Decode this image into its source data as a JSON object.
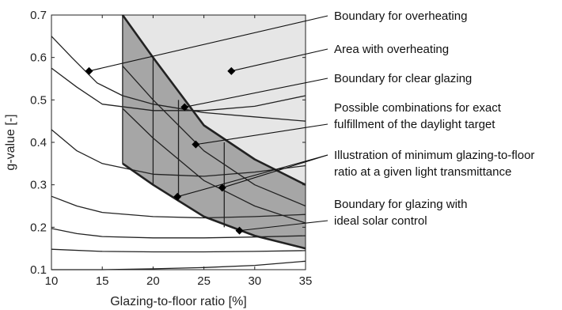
{
  "chart_data": {
    "type": "line",
    "title": "",
    "xlabel": "Glazing-to-floor ratio [%]",
    "ylabel": "g-value [-]",
    "xlim": [
      10,
      35
    ],
    "ylim": [
      0.1,
      0.7
    ],
    "xticks": [
      10,
      15,
      20,
      25,
      30,
      35
    ],
    "yticks": [
      0.1,
      0.2,
      0.3,
      0.4,
      0.5,
      0.6,
      0.7
    ],
    "xtick_labels": [
      "10",
      "15",
      "20",
      "25",
      "30",
      "35"
    ],
    "ytick_labels": [
      "0.1",
      "0.2",
      "0.3",
      "0.4",
      "0.5",
      "0.6",
      "0.7"
    ],
    "grid": false,
    "colors": {
      "overheating_area": "#e6e6e6",
      "possible_combinations_area": "#a6a6a6",
      "lines": "#222222",
      "markers": "#000000"
    },
    "series": [
      {
        "x": [
          10,
          12,
          14.5,
          17,
          20,
          25,
          30,
          35
        ],
        "y": [
          0.65,
          0.6,
          0.54,
          0.51,
          0.49,
          0.47,
          0.46,
          0.45
        ]
      },
      {
        "x": [
          10,
          12.5,
          15,
          20,
          25,
          30,
          35
        ],
        "y": [
          0.575,
          0.53,
          0.49,
          0.475,
          0.475,
          0.485,
          0.51
        ]
      },
      {
        "x": [
          10,
          12.5,
          15,
          20,
          25,
          30,
          35
        ],
        "y": [
          0.43,
          0.38,
          0.35,
          0.325,
          0.32,
          0.33,
          0.345
        ]
      },
      {
        "x": [
          10,
          12.5,
          15,
          20,
          25,
          30,
          35
        ],
        "y": [
          0.273,
          0.25,
          0.235,
          0.225,
          0.222,
          0.225,
          0.23
        ]
      },
      {
        "x": [
          10,
          12.5,
          15,
          20,
          25,
          30,
          35
        ],
        "y": [
          0.197,
          0.185,
          0.178,
          0.175,
          0.175,
          0.177,
          0.18
        ]
      },
      {
        "x": [
          10,
          15,
          20,
          25,
          30,
          35
        ],
        "y": [
          0.148,
          0.143,
          0.142,
          0.142,
          0.143,
          0.145
        ]
      },
      {
        "x": [
          10,
          15,
          20,
          25,
          30,
          35
        ],
        "y": [
          0.1,
          0.1,
          0.102,
          0.105,
          0.11,
          0.12
        ]
      },
      {
        "x": [
          17,
          20,
          25,
          30,
          35
        ],
        "y": [
          0.7,
          0.6,
          0.44,
          0.36,
          0.3
        ]
      },
      {
        "x": [
          17,
          20,
          25,
          30,
          35
        ],
        "y": [
          0.35,
          0.3,
          0.225,
          0.18,
          0.15
        ]
      },
      {
        "x": [
          17,
          20,
          25,
          30,
          35
        ],
        "y": [
          0.58,
          0.5,
          0.38,
          0.3,
          0.25
        ]
      },
      {
        "x": [
          17,
          20,
          25,
          30,
          35
        ],
        "y": [
          0.48,
          0.41,
          0.31,
          0.25,
          0.21
        ]
      }
    ],
    "regions": [
      {
        "x": [
          10,
          35,
          35,
          30,
          25,
          20,
          17,
          17,
          10
        ],
        "y": [
          0.7,
          0.7,
          0.3,
          0.36,
          0.44,
          0.6,
          0.7,
          0.7,
          0.7
        ]
      },
      {
        "x": [
          17,
          20,
          25,
          30,
          35,
          35,
          30,
          25,
          20,
          17
        ],
        "y": [
          0.7,
          0.6,
          0.44,
          0.36,
          0.3,
          0.15,
          0.18,
          0.225,
          0.3,
          0.35
        ]
      }
    ],
    "region_fill": [
      "overheating_area",
      "possible_combinations_area"
    ],
    "vertical_lines": [
      {
        "x": 17,
        "y": [
          0.35,
          0.7
        ]
      },
      {
        "x": 20,
        "y": [
          0.3,
          0.6
        ]
      },
      {
        "x": 22.5,
        "y": [
          0.26,
          0.5
        ]
      },
      {
        "x": 27,
        "y": [
          0.2,
          0.4
        ]
      }
    ],
    "bold_series": [
      7,
      8
    ],
    "annotations": [
      {
        "text": "Boundary for overheating",
        "marker": [
          13.7,
          0.568
        ],
        "lines": [
          "Boundary for overheating"
        ]
      },
      {
        "text": "Area with overheating",
        "marker": [
          27.7,
          0.568
        ],
        "lines": [
          "Area with overheating"
        ]
      },
      {
        "text": "Boundary for clear glazing",
        "marker": [
          23.1,
          0.483
        ],
        "lines": [
          "Boundary for clear glazing"
        ]
      },
      {
        "text": "Possible combinations for exact fulfillment of the daylight target",
        "marker": [
          24.2,
          0.395
        ],
        "lines": [
          "Possible combinations for exact",
          "fulfillment of the daylight target"
        ]
      },
      {
        "text": "Illustration of minimum glazing-to-floor ratio at a given light transmittance",
        "marker": [
          22.4,
          0.272
        ],
        "marker2": [
          26.8,
          0.293
        ],
        "lines": [
          "Illustration of minimum glazing-to-floor",
          "ratio at a given light transmittance"
        ]
      },
      {
        "text": "Boundary for glazing with ideal solar control",
        "marker": [
          28.5,
          0.192
        ],
        "lines": [
          "Boundary for glazing with",
          "ideal solar control"
        ]
      }
    ]
  }
}
